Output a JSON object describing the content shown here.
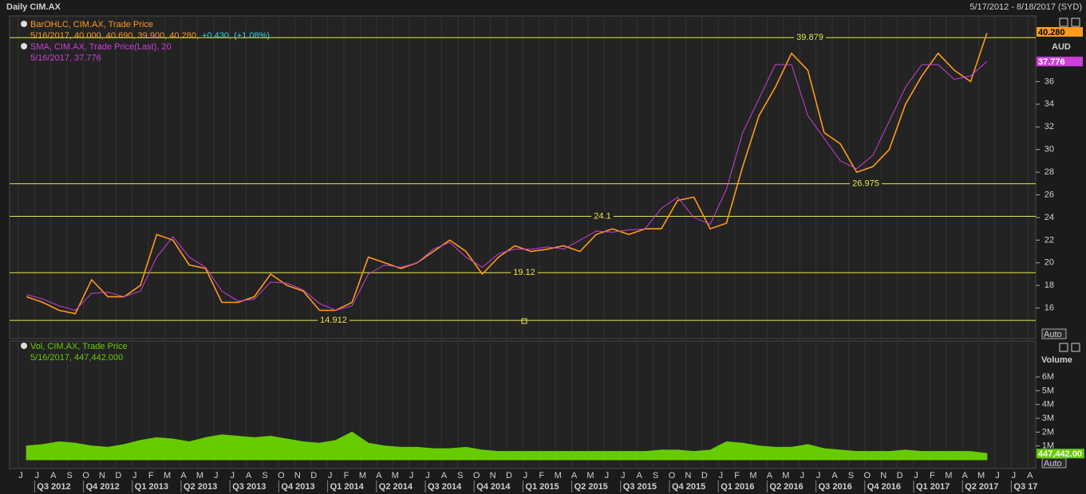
{
  "header": {
    "title": "Daily CIM.AX",
    "range": "5/17/2012 - 8/18/2017 (SYD)"
  },
  "x_axis": {
    "month_labels": [
      "J",
      "J",
      "A",
      "S",
      "O",
      "N",
      "D",
      "J",
      "F",
      "M",
      "A",
      "M",
      "J",
      "J",
      "A",
      "S",
      "O",
      "N",
      "D",
      "J",
      "F",
      "M",
      "A",
      "M",
      "J",
      "J",
      "A",
      "S",
      "O",
      "N",
      "D",
      "J",
      "F",
      "M",
      "A",
      "M",
      "J",
      "J",
      "A",
      "S",
      "O",
      "N",
      "D",
      "J",
      "F",
      "M",
      "A",
      "M",
      "J",
      "J",
      "A",
      "S",
      "O",
      "N",
      "D",
      "J",
      "F",
      "M",
      "A",
      "M",
      "J",
      "J",
      "A"
    ],
    "quarter_labels": [
      "Q3 2012",
      "Q4 2012",
      "Q1 2013",
      "Q2 2013",
      "Q3 2013",
      "Q4 2013",
      "Q1 2014",
      "Q2 2014",
      "Q3 2014",
      "Q4 2014",
      "Q1 2015",
      "Q2 2015",
      "Q3 2015",
      "Q4 2015",
      "Q1 2016",
      "Q2 2016",
      "Q3 2016",
      "Q4 2016",
      "Q1 2017",
      "Q2 2017",
      "Q3 17"
    ]
  },
  "chart_data": [
    {
      "type": "line",
      "axis_title": "AUD",
      "scale_mode": "Auto",
      "x": [
        "2012-06",
        "2012-07",
        "2012-08",
        "2012-09",
        "2012-10",
        "2012-11",
        "2012-12",
        "2013-01",
        "2013-02",
        "2013-03",
        "2013-04",
        "2013-05",
        "2013-06",
        "2013-07",
        "2013-08",
        "2013-09",
        "2013-10",
        "2013-11",
        "2013-12",
        "2014-01",
        "2014-02",
        "2014-03",
        "2014-04",
        "2014-05",
        "2014-06",
        "2014-07",
        "2014-08",
        "2014-09",
        "2014-10",
        "2014-11",
        "2014-12",
        "2015-01",
        "2015-02",
        "2015-03",
        "2015-04",
        "2015-05",
        "2015-06",
        "2015-07",
        "2015-08",
        "2015-09",
        "2015-10",
        "2015-11",
        "2015-12",
        "2016-01",
        "2016-02",
        "2016-03",
        "2016-04",
        "2016-05",
        "2016-06",
        "2016-07",
        "2016-08",
        "2016-09",
        "2016-10",
        "2016-11",
        "2016-12",
        "2017-01",
        "2017-02",
        "2017-03",
        "2017-04",
        "2017-05"
      ],
      "series": [
        {
          "name": "BarOHLC, CIM.AX, Trade Price",
          "legend_detail": "5/16/2017, 40.000, 40.690, 39.900, 40.280,",
          "legend_change": "+0.430, (+1.08%)",
          "badge": "40.280",
          "color": "#ff9a1a",
          "values": [
            17.0,
            16.5,
            15.8,
            15.5,
            18.5,
            17.0,
            17.0,
            18.0,
            22.5,
            22.0,
            19.8,
            19.5,
            16.5,
            16.5,
            17.0,
            19.0,
            18.0,
            17.5,
            15.8,
            15.8,
            16.5,
            20.5,
            20.0,
            19.5,
            20.0,
            21.0,
            22.0,
            21.0,
            19.0,
            20.5,
            21.5,
            21.0,
            21.2,
            21.5,
            21.0,
            22.5,
            23.0,
            22.5,
            23.0,
            23.0,
            25.5,
            25.8,
            23.0,
            23.5,
            28.5,
            33.0,
            35.5,
            38.5,
            37.0,
            31.5,
            30.5,
            28.0,
            28.5,
            30.0,
            34.0,
            36.5,
            38.5,
            37.0,
            36.0,
            40.28
          ]
        },
        {
          "name": "SMA, CIM.AX, Trade Price(Last),  20",
          "legend_detail": "5/16/2017, 37.776",
          "badge": "37.776",
          "color": "#cc3fd8",
          "values": [
            17.2,
            16.8,
            16.2,
            15.8,
            17.3,
            17.4,
            17.0,
            17.5,
            20.5,
            22.3,
            20.5,
            19.6,
            17.5,
            16.6,
            16.8,
            18.3,
            18.2,
            17.6,
            16.4,
            15.8,
            16.2,
            19.0,
            19.8,
            19.6,
            20.0,
            21.2,
            21.8,
            20.5,
            19.6,
            20.8,
            21.2,
            21.2,
            21.4,
            21.2,
            22.0,
            22.8,
            22.7,
            22.9,
            23.0,
            24.8,
            25.8,
            24.0,
            23.4,
            26.5,
            31.5,
            34.5,
            37.5,
            37.5,
            33.0,
            31.0,
            29.0,
            28.3,
            29.5,
            32.5,
            35.5,
            37.5,
            37.5,
            36.2,
            36.5,
            37.776
          ]
        }
      ],
      "levels": [
        39.879,
        26.975,
        24.1,
        19.12,
        14.912
      ],
      "level_color": "#e6e64a",
      "ylim": [
        13.3,
        41.8
      ],
      "yticks": [
        16,
        18,
        20,
        22,
        24,
        26,
        28,
        30,
        32,
        34,
        36
      ]
    },
    {
      "type": "area",
      "axis_title": "Volume",
      "scale_mode": "Auto",
      "x": [
        "2012-06",
        "2012-07",
        "2012-08",
        "2012-09",
        "2012-10",
        "2012-11",
        "2012-12",
        "2013-01",
        "2013-02",
        "2013-03",
        "2013-04",
        "2013-05",
        "2013-06",
        "2013-07",
        "2013-08",
        "2013-09",
        "2013-10",
        "2013-11",
        "2013-12",
        "2014-01",
        "2014-02",
        "2014-03",
        "2014-04",
        "2014-05",
        "2014-06",
        "2014-07",
        "2014-08",
        "2014-09",
        "2014-10",
        "2014-11",
        "2014-12",
        "2015-01",
        "2015-02",
        "2015-03",
        "2015-04",
        "2015-05",
        "2015-06",
        "2015-07",
        "2015-08",
        "2015-09",
        "2015-10",
        "2015-11",
        "2015-12",
        "2016-01",
        "2016-02",
        "2016-03",
        "2016-04",
        "2016-05",
        "2016-06",
        "2016-07",
        "2016-08",
        "2016-09",
        "2016-10",
        "2016-11",
        "2016-12",
        "2017-01",
        "2017-02",
        "2017-03",
        "2017-04",
        "2017-05"
      ],
      "series": [
        {
          "name": "Vol, CIM.AX, Trade Price",
          "legend_detail": "5/16/2017, 447,442.000",
          "badge": "447,442.00",
          "color": "#66cc00",
          "values": [
            1000000,
            1100000,
            1300000,
            1200000,
            1000000,
            900000,
            1100000,
            1400000,
            1600000,
            1500000,
            1300000,
            1600000,
            1800000,
            1700000,
            1600000,
            1700000,
            1500000,
            1300000,
            1200000,
            1400000,
            2000000,
            1200000,
            1000000,
            900000,
            900000,
            800000,
            800000,
            900000,
            700000,
            600000,
            600000,
            600000,
            600000,
            600000,
            600000,
            600000,
            600000,
            600000,
            600000,
            700000,
            700000,
            600000,
            700000,
            1300000,
            1200000,
            1000000,
            900000,
            900000,
            1100000,
            800000,
            700000,
            600000,
            600000,
            600000,
            700000,
            600000,
            600000,
            600000,
            600000,
            447442
          ]
        }
      ],
      "ylim": [
        0,
        8600000
      ],
      "yticks": [
        {
          "value": 1000000,
          "label": "1M"
        },
        {
          "value": 2000000,
          "label": "2M"
        },
        {
          "value": 3000000,
          "label": "3M"
        },
        {
          "value": 4000000,
          "label": "4M"
        },
        {
          "value": 5000000,
          "label": "5M"
        },
        {
          "value": 6000000,
          "label": "6M"
        }
      ]
    }
  ]
}
